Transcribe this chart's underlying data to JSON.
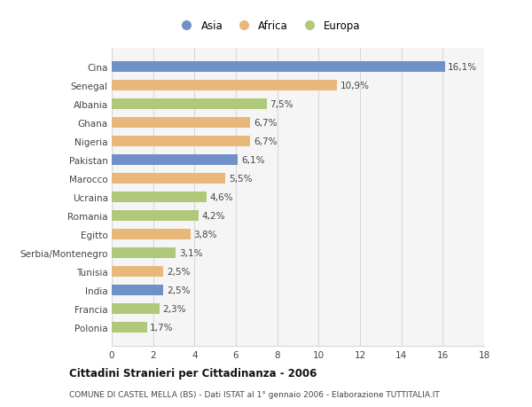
{
  "countries": [
    "Cina",
    "Senegal",
    "Albania",
    "Ghana",
    "Nigeria",
    "Pakistan",
    "Marocco",
    "Ucraina",
    "Romania",
    "Egitto",
    "Serbia/Montenegro",
    "Tunisia",
    "India",
    "Francia",
    "Polonia"
  ],
  "values": [
    16.1,
    10.9,
    7.5,
    6.7,
    6.7,
    6.1,
    5.5,
    4.6,
    4.2,
    3.8,
    3.1,
    2.5,
    2.5,
    2.3,
    1.7
  ],
  "labels": [
    "16,1%",
    "10,9%",
    "7,5%",
    "6,7%",
    "6,7%",
    "6,1%",
    "5,5%",
    "4,6%",
    "4,2%",
    "3,8%",
    "3,1%",
    "2,5%",
    "2,5%",
    "2,3%",
    "1,7%"
  ],
  "categories": [
    "Asia",
    "Africa",
    "Europa"
  ],
  "continent": [
    "Asia",
    "Africa",
    "Europa",
    "Africa",
    "Africa",
    "Asia",
    "Africa",
    "Europa",
    "Europa",
    "Africa",
    "Europa",
    "Africa",
    "Asia",
    "Europa",
    "Europa"
  ],
  "colors": {
    "Asia": "#7090c8",
    "Africa": "#e8b87a",
    "Europa": "#b0c87a"
  },
  "title": "Cittadini Stranieri per Cittadinanza - 2006",
  "subtitle": "COMUNE DI CASTEL MELLA (BS) - Dati ISTAT al 1° gennaio 2006 - Elaborazione TUTTITALIA.IT",
  "xlim": [
    0,
    18
  ],
  "xticks": [
    0,
    2,
    4,
    6,
    8,
    10,
    12,
    14,
    16,
    18
  ],
  "bg_color": "#ffffff",
  "plot_bg_color": "#f5f5f5",
  "grid_color": "#d8d8d8",
  "bar_height": 0.55,
  "label_fontsize": 7.5,
  "tick_fontsize": 7.5,
  "legend_fontsize": 8.5
}
